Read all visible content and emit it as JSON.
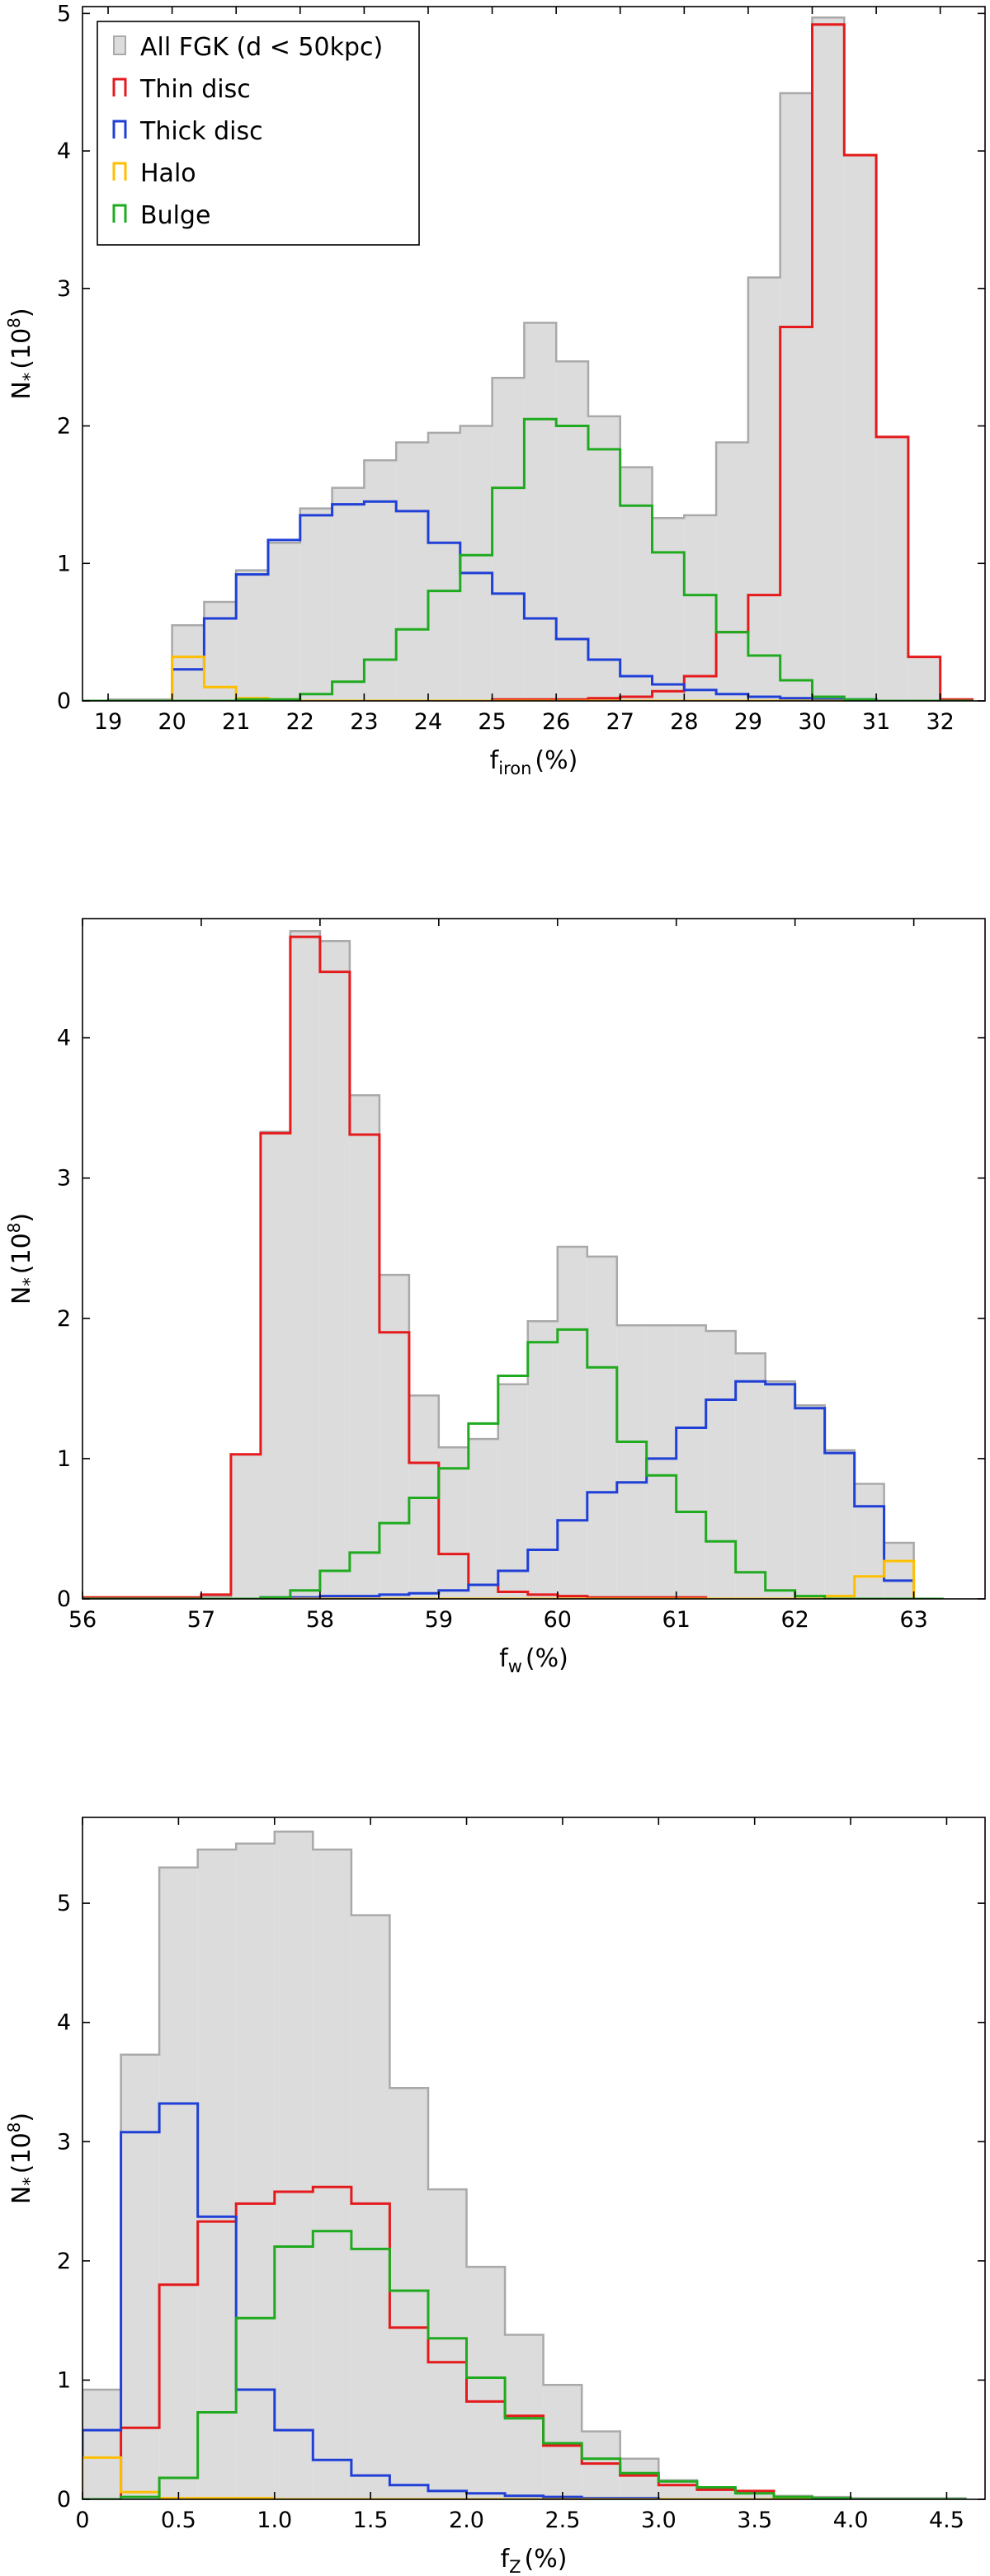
{
  "chart_data": [
    {
      "type": "histogram",
      "xlabel": "f",
      "xlabel_sub": "iron",
      "xlabel_unit": "(%)",
      "ylabel": "N",
      "ylabel_sub": "*",
      "ylabel_unit": "(10",
      "ylabel_exp": "8",
      "ylabel_close": ")",
      "xlim": [
        18.6,
        32.7
      ],
      "ylim": [
        0,
        5.05
      ],
      "xticks": [
        19,
        20,
        21,
        22,
        23,
        24,
        25,
        26,
        27,
        28,
        29,
        30,
        31,
        32
      ],
      "yticks": [
        0,
        1,
        2,
        3,
        4,
        5
      ],
      "legend": [
        {
          "label": "All FGK (d < 50kpc)",
          "color": "#c8c8c8"
        },
        {
          "label": "Thin disc",
          "color": "#e41a1c"
        },
        {
          "label": "Thick disc",
          "color": "#1f3fd6"
        },
        {
          "label": "Halo",
          "color": "#ffbf00"
        },
        {
          "label": "Bulge",
          "color": "#1faa1f"
        }
      ],
      "bin_edges": [
        18.5,
        19.0,
        19.5,
        20.0,
        20.5,
        21.0,
        21.5,
        22.0,
        22.5,
        23.0,
        23.5,
        24.0,
        24.5,
        25.0,
        25.5,
        26.0,
        26.5,
        27.0,
        27.5,
        28.0,
        28.5,
        29.0,
        29.5,
        30.0,
        30.5,
        31.0,
        31.5,
        32.0,
        32.5
      ],
      "series": [
        {
          "name": "All FGK (d < 50kpc)",
          "color": "#c8c8c8",
          "fill": "#dcdcdc",
          "edge": "#a9a9a9",
          "values": [
            0,
            0.01,
            0.01,
            0.55,
            0.72,
            0.95,
            1.15,
            1.4,
            1.55,
            1.75,
            1.88,
            1.95,
            2.0,
            2.35,
            2.75,
            2.47,
            2.07,
            1.7,
            1.33,
            1.35,
            1.88,
            3.08,
            4.42,
            4.97,
            3.97,
            1.92,
            0.32,
            0.01
          ]
        },
        {
          "name": "Thin disc",
          "color": "#e41a1c",
          "values": [
            0,
            0,
            0,
            0,
            0,
            0,
            0,
            0,
            0,
            0,
            0,
            0,
            0,
            0.01,
            0.01,
            0.01,
            0.02,
            0.03,
            0.07,
            0.18,
            0.5,
            0.77,
            2.72,
            4.92,
            3.97,
            1.92,
            0.32,
            0.01
          ]
        },
        {
          "name": "Thick disc",
          "color": "#1f3fd6",
          "values": [
            0,
            0,
            0,
            0.23,
            0.6,
            0.92,
            1.17,
            1.35,
            1.43,
            1.45,
            1.38,
            1.15,
            0.93,
            0.78,
            0.6,
            0.45,
            0.3,
            0.18,
            0.12,
            0.08,
            0.05,
            0.03,
            0.02,
            0.01,
            0.01,
            0,
            0,
            0
          ]
        },
        {
          "name": "Halo",
          "color": "#ffbf00",
          "values": [
            0,
            0,
            0,
            0.32,
            0.1,
            0.02,
            0.01,
            0,
            0,
            0,
            0,
            0,
            0,
            0,
            0,
            0,
            0,
            0,
            0,
            0,
            0,
            0,
            0,
            0,
            0,
            0,
            0,
            0
          ]
        },
        {
          "name": "Bulge",
          "color": "#1faa1f",
          "values": [
            0,
            0,
            0,
            0,
            0,
            0.01,
            0.01,
            0.05,
            0.14,
            0.3,
            0.52,
            0.8,
            1.06,
            1.55,
            2.05,
            2.0,
            1.83,
            1.42,
            1.08,
            0.77,
            0.5,
            0.33,
            0.15,
            0.03,
            0.01,
            0,
            0,
            0
          ]
        }
      ]
    },
    {
      "type": "histogram",
      "xlabel": "f",
      "xlabel_sub": "w",
      "xlabel_unit": "(%)",
      "ylabel": "N",
      "ylabel_sub": "*",
      "ylabel_unit": "(10",
      "ylabel_exp": "8",
      "ylabel_close": ")",
      "xlim": [
        56.0,
        63.6
      ],
      "ylim": [
        0,
        4.85
      ],
      "xticks": [
        56,
        57,
        58,
        59,
        60,
        61,
        62,
        63
      ],
      "yticks": [
        0,
        1,
        2,
        3,
        4
      ],
      "bin_edges": [
        56.0,
        56.25,
        56.5,
        56.75,
        57.0,
        57.25,
        57.5,
        57.75,
        58.0,
        58.25,
        58.5,
        58.75,
        59.0,
        59.25,
        59.5,
        59.75,
        60.0,
        60.25,
        60.5,
        60.75,
        61.0,
        61.25,
        61.5,
        61.75,
        62.0,
        62.25,
        62.5,
        62.75,
        63.0,
        63.25
      ],
      "series": [
        {
          "name": "All FGK (d < 50kpc)",
          "color": "#c8c8c8",
          "fill": "#dcdcdc",
          "edge": "#a9a9a9",
          "values": [
            0.01,
            0.01,
            0.01,
            0.01,
            0.02,
            1.03,
            3.33,
            4.76,
            4.69,
            3.59,
            2.31,
            1.45,
            1.08,
            1.14,
            1.53,
            1.98,
            2.51,
            2.44,
            1.95,
            1.95,
            1.95,
            1.91,
            1.75,
            1.55,
            1.38,
            1.06,
            0.82,
            0.4,
            0
          ]
        },
        {
          "name": "Thin disc",
          "color": "#e41a1c",
          "values": [
            0.01,
            0.01,
            0.01,
            0.01,
            0.03,
            1.03,
            3.32,
            4.72,
            4.47,
            3.31,
            1.9,
            0.97,
            0.32,
            0.1,
            0.05,
            0.03,
            0.02,
            0.01,
            0.01,
            0.01,
            0.01,
            0,
            0,
            0,
            0,
            0,
            0,
            0,
            0
          ]
        },
        {
          "name": "Thick disc",
          "color": "#1f3fd6",
          "values": [
            0,
            0,
            0,
            0,
            0,
            0,
            0.01,
            0.01,
            0.02,
            0.02,
            0.03,
            0.04,
            0.06,
            0.1,
            0.2,
            0.35,
            0.56,
            0.76,
            0.83,
            1.0,
            1.22,
            1.42,
            1.55,
            1.53,
            1.36,
            1.04,
            0.66,
            0.13,
            0
          ]
        },
        {
          "name": "Halo",
          "color": "#ffbf00",
          "values": [
            0,
            0,
            0,
            0,
            0,
            0,
            0,
            0,
            0,
            0,
            0,
            0,
            0,
            0,
            0,
            0,
            0,
            0,
            0,
            0,
            0,
            0,
            0,
            0,
            0,
            0.02,
            0.16,
            0.27,
            0
          ]
        },
        {
          "name": "Bulge",
          "color": "#1faa1f",
          "values": [
            0,
            0,
            0,
            0,
            0,
            0,
            0.01,
            0.06,
            0.2,
            0.33,
            0.54,
            0.72,
            0.93,
            1.25,
            1.59,
            1.83,
            1.92,
            1.65,
            1.12,
            0.88,
            0.62,
            0.41,
            0.19,
            0.06,
            0.02,
            0,
            0,
            0,
            0
          ]
        }
      ]
    },
    {
      "type": "histogram",
      "xlabel": "f",
      "xlabel_sub": "Z",
      "xlabel_unit": "(%)",
      "ylabel": "N",
      "ylabel_sub": "*",
      "ylabel_unit": "(10",
      "ylabel_exp": "8",
      "ylabel_close": ")",
      "xlim": [
        0.0,
        4.7
      ],
      "ylim": [
        0,
        5.72
      ],
      "xticks": [
        0,
        0.5,
        1.0,
        1.5,
        2.0,
        2.5,
        3.0,
        3.5,
        4.0,
        4.5
      ],
      "xtick_labels": [
        "0",
        "0.5",
        "1.0",
        "1.5",
        "2.0",
        "2.5",
        "3.0",
        "3.5",
        "4.0",
        "4.5"
      ],
      "yticks": [
        0,
        1,
        2,
        3,
        4,
        5
      ],
      "bin_edges": [
        0.0,
        0.2,
        0.4,
        0.6,
        0.8,
        1.0,
        1.2,
        1.4,
        1.6,
        1.8,
        2.0,
        2.2,
        2.4,
        2.6,
        2.8,
        3.0,
        3.2,
        3.4,
        3.6,
        3.8,
        4.0,
        4.2,
        4.4,
        4.6
      ],
      "series": [
        {
          "name": "All FGK (d < 50kpc)",
          "color": "#c8c8c8",
          "fill": "#dcdcdc",
          "edge": "#a9a9a9",
          "values": [
            0.92,
            3.73,
            5.3,
            5.45,
            5.5,
            5.6,
            5.45,
            4.9,
            3.45,
            2.6,
            1.95,
            1.38,
            0.96,
            0.57,
            0.34,
            0.16,
            0.1,
            0.05,
            0.03,
            0.02,
            0.01,
            0.01,
            0.01
          ]
        },
        {
          "name": "Thin disc",
          "color": "#e41a1c",
          "values": [
            0,
            0.6,
            1.8,
            2.33,
            2.48,
            2.58,
            2.62,
            2.48,
            1.44,
            1.15,
            0.82,
            0.7,
            0.45,
            0.3,
            0.2,
            0.12,
            0.08,
            0.07,
            0,
            0,
            0,
            0,
            0
          ]
        },
        {
          "name": "Thick disc",
          "color": "#1f3fd6",
          "values": [
            0.58,
            3.08,
            3.32,
            2.37,
            0.92,
            0.58,
            0.33,
            0.2,
            0.12,
            0.07,
            0.05,
            0.03,
            0.02,
            0.01,
            0.01,
            0,
            0,
            0,
            0,
            0,
            0,
            0,
            0
          ]
        },
        {
          "name": "Halo",
          "color": "#ffbf00",
          "values": [
            0.35,
            0.06,
            0.01,
            0.01,
            0.01,
            0,
            0,
            0,
            0,
            0,
            0,
            0,
            0,
            0,
            0,
            0,
            0,
            0,
            0,
            0,
            0,
            0,
            0
          ]
        },
        {
          "name": "Bulge",
          "color": "#1faa1f",
          "values": [
            0,
            0.02,
            0.18,
            0.73,
            1.52,
            2.12,
            2.25,
            2.1,
            1.75,
            1.35,
            1.02,
            0.68,
            0.47,
            0.34,
            0.22,
            0.15,
            0.1,
            0.05,
            0.02,
            0.01,
            0,
            0,
            0
          ]
        }
      ]
    }
  ]
}
